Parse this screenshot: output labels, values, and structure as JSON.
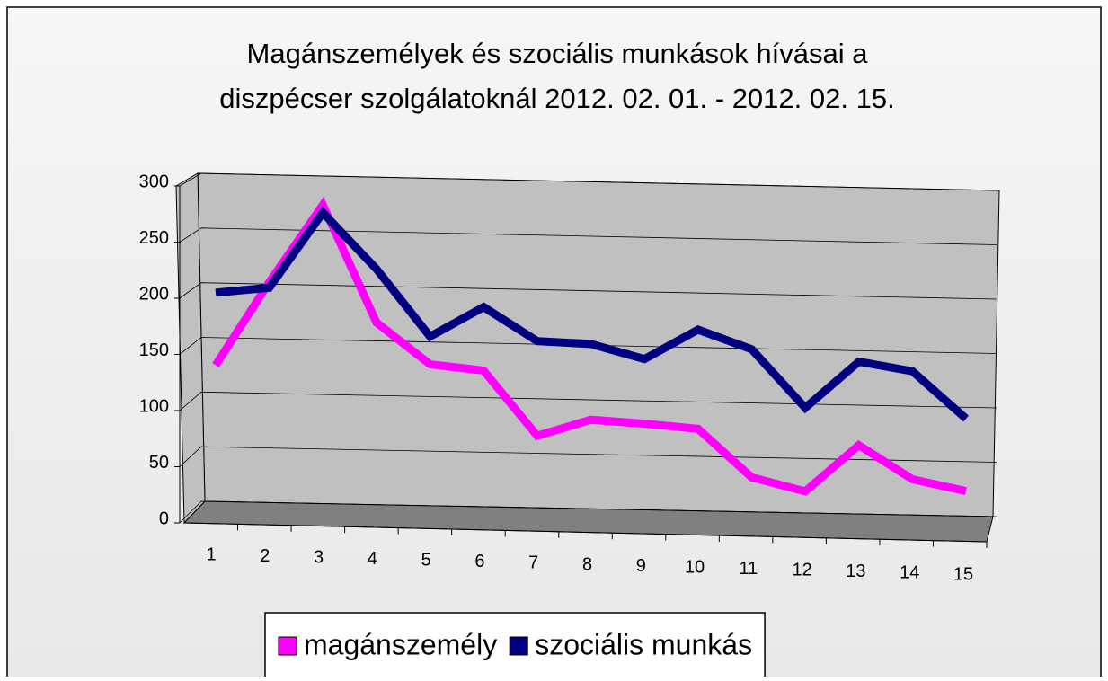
{
  "chart_data": {
    "type": "line",
    "title": [
      "Magánszemélyek és szociális munkások hívásai a",
      "diszpécser szolgálatoknál 2012. 02. 01. - 2012. 02. 15."
    ],
    "categories": [
      "1",
      "2",
      "3",
      "4",
      "5",
      "6",
      "7",
      "8",
      "9",
      "10",
      "11",
      "12",
      "13",
      "14",
      "15"
    ],
    "series": [
      {
        "name": "magánszemély",
        "color": "#ff00ff",
        "values": [
          140,
          215,
          285,
          180,
          143,
          138,
          80,
          95,
          92,
          88,
          45,
          33,
          75,
          45,
          35
        ]
      },
      {
        "name": "szociális munkás",
        "color": "#000080",
        "values": [
          205,
          210,
          278,
          228,
          168,
          195,
          165,
          163,
          150,
          177,
          160,
          108,
          150,
          142,
          100
        ]
      }
    ],
    "ylim": [
      0,
      300
    ],
    "yticks": [
      0,
      50,
      100,
      150,
      200,
      250,
      300
    ],
    "grid": true,
    "legend": "bottom"
  }
}
